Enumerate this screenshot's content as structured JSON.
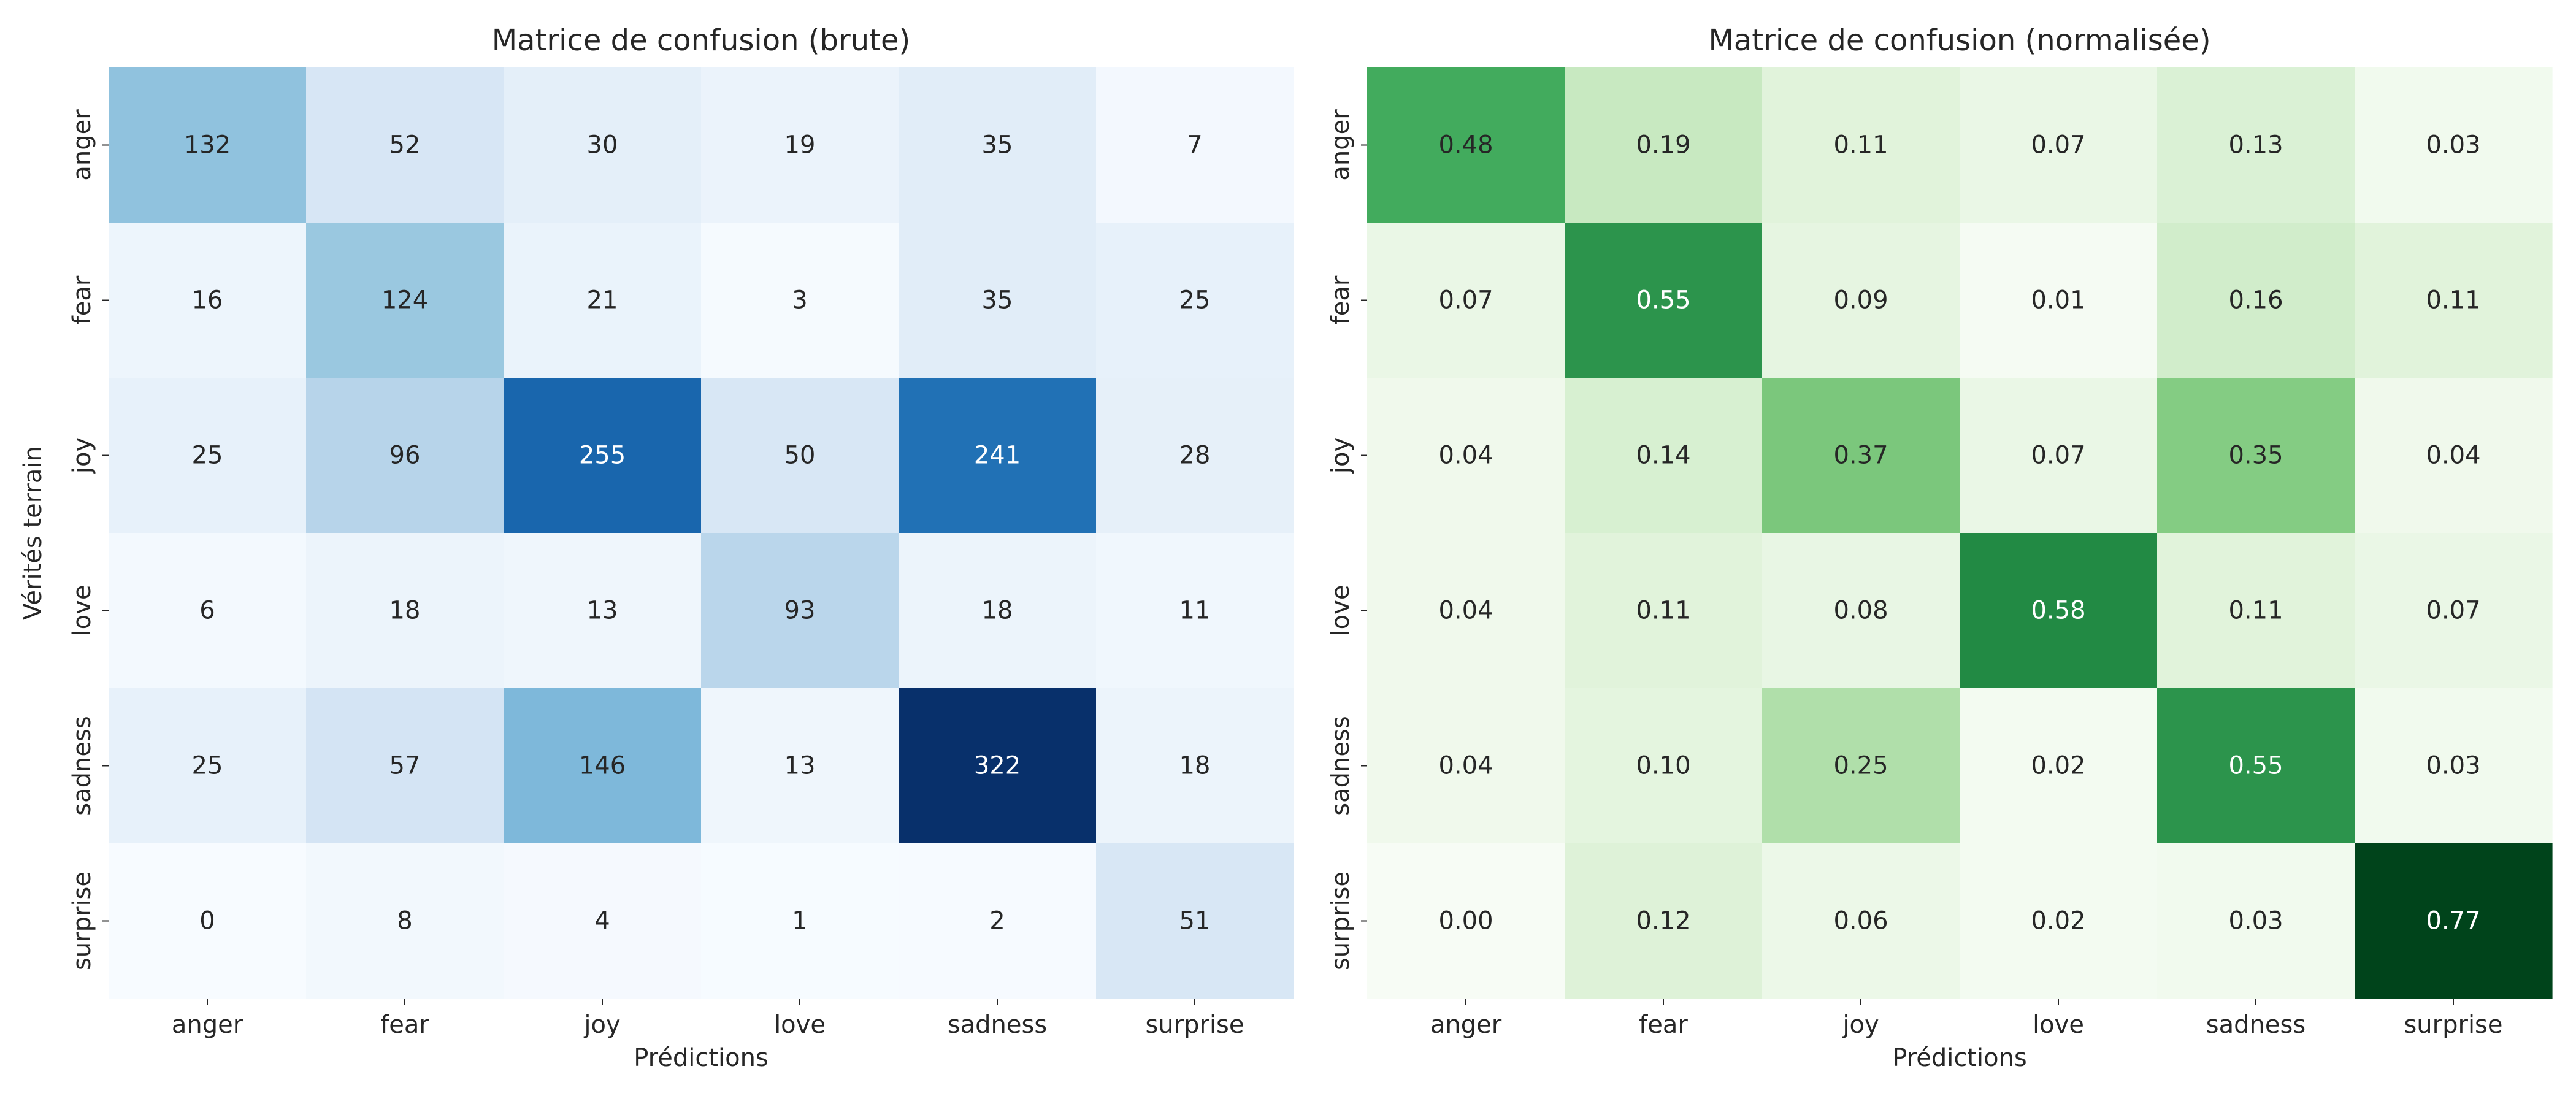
{
  "chart_data": [
    {
      "type": "heatmap",
      "title": "Matrice de confusion (brute)",
      "xlabel": "Prédictions",
      "ylabel": "Vérités terrain",
      "x_categories": [
        "anger",
        "fear",
        "joy",
        "love",
        "sadness",
        "surprise"
      ],
      "y_categories": [
        "anger",
        "fear",
        "joy",
        "love",
        "sadness",
        "surprise"
      ],
      "values": [
        [
          132,
          52,
          30,
          19,
          35,
          7
        ],
        [
          16,
          124,
          21,
          3,
          35,
          25
        ],
        [
          25,
          96,
          255,
          50,
          241,
          28
        ],
        [
          6,
          18,
          13,
          93,
          18,
          11
        ],
        [
          25,
          57,
          146,
          13,
          322,
          18
        ],
        [
          0,
          8,
          4,
          1,
          2,
          51
        ]
      ],
      "value_format": "int",
      "colormap": "Blues",
      "colors": [
        "#f7fbff",
        "#deebf7",
        "#c6dbef",
        "#9ecae1",
        "#6baed6",
        "#4292c6",
        "#2171b5",
        "#08519c",
        "#08306b"
      ],
      "vmin": 0,
      "vmax": 322,
      "colorbar": false
    },
    {
      "type": "heatmap",
      "title": "Matrice de confusion (normalisée)",
      "xlabel": "Prédictions",
      "ylabel": "",
      "x_categories": [
        "anger",
        "fear",
        "joy",
        "love",
        "sadness",
        "surprise"
      ],
      "y_categories": [
        "anger",
        "fear",
        "joy",
        "love",
        "sadness",
        "surprise"
      ],
      "values": [
        [
          0.48,
          0.19,
          0.11,
          0.07,
          0.13,
          0.03
        ],
        [
          0.07,
          0.55,
          0.09,
          0.01,
          0.16,
          0.11
        ],
        [
          0.04,
          0.14,
          0.37,
          0.07,
          0.35,
          0.04
        ],
        [
          0.04,
          0.11,
          0.08,
          0.58,
          0.11,
          0.07
        ],
        [
          0.04,
          0.1,
          0.25,
          0.02,
          0.55,
          0.03
        ],
        [
          0.0,
          0.12,
          0.06,
          0.02,
          0.03,
          0.77
        ]
      ],
      "value_format": "2f",
      "colormap": "Greens",
      "colors": [
        "#f7fcf5",
        "#e5f5e0",
        "#c7e9c0",
        "#a1d99b",
        "#74c476",
        "#41ab5d",
        "#238b45",
        "#006d2c",
        "#00441b"
      ],
      "vmin": 0.0,
      "vmax": 0.77,
      "colorbar": false
    }
  ]
}
